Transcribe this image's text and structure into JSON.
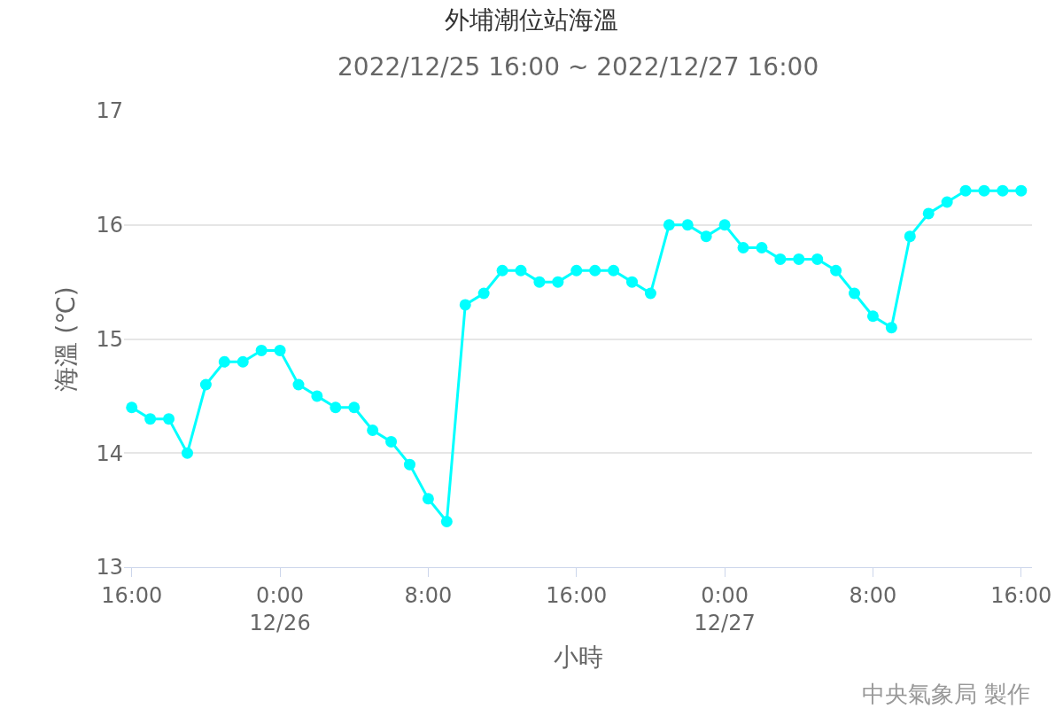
{
  "chart_data": {
    "type": "line",
    "title": "外埔潮位站海溫",
    "subtitle": "2022/12/25 16:00 ~ 2022/12/27 16:00",
    "xlabel": "小時",
    "ylabel": "海溫 (℃)",
    "x": [
      "2022-12-25T16:00",
      "2022-12-25T17:00",
      "2022-12-25T18:00",
      "2022-12-25T19:00",
      "2022-12-25T20:00",
      "2022-12-25T21:00",
      "2022-12-25T22:00",
      "2022-12-25T23:00",
      "2022-12-26T00:00",
      "2022-12-26T01:00",
      "2022-12-26T02:00",
      "2022-12-26T03:00",
      "2022-12-26T04:00",
      "2022-12-26T05:00",
      "2022-12-26T06:00",
      "2022-12-26T07:00",
      "2022-12-26T08:00",
      "2022-12-26T09:00",
      "2022-12-26T10:00",
      "2022-12-26T11:00",
      "2022-12-26T12:00",
      "2022-12-26T13:00",
      "2022-12-26T14:00",
      "2022-12-26T15:00",
      "2022-12-26T16:00",
      "2022-12-26T17:00",
      "2022-12-26T18:00",
      "2022-12-26T19:00",
      "2022-12-26T20:00",
      "2022-12-26T21:00",
      "2022-12-26T22:00",
      "2022-12-26T23:00",
      "2022-12-27T00:00",
      "2022-12-27T01:00",
      "2022-12-27T02:00",
      "2022-12-27T03:00",
      "2022-12-27T04:00",
      "2022-12-27T05:00",
      "2022-12-27T06:00",
      "2022-12-27T07:00",
      "2022-12-27T08:00",
      "2022-12-27T09:00",
      "2022-12-27T10:00",
      "2022-12-27T11:00",
      "2022-12-27T12:00",
      "2022-12-27T13:00",
      "2022-12-27T14:00",
      "2022-12-27T15:00",
      "2022-12-27T16:00"
    ],
    "series": [
      {
        "color": "#00ffff",
        "values": [
          14.4,
          14.3,
          14.3,
          14.0,
          14.6,
          14.8,
          14.8,
          14.9,
          14.9,
          14.6,
          14.5,
          14.4,
          14.4,
          14.2,
          14.1,
          13.9,
          13.6,
          13.4,
          15.3,
          15.4,
          15.6,
          15.6,
          15.5,
          15.5,
          15.6,
          15.6,
          15.6,
          15.5,
          15.4,
          16.0,
          16.0,
          15.9,
          16.0,
          15.8,
          15.8,
          15.7,
          15.7,
          15.7,
          15.6,
          15.4,
          15.2,
          15.1,
          15.9,
          16.1,
          16.2,
          16.3,
          16.3,
          16.3,
          16.3
        ]
      }
    ],
    "xlim": [
      "2022-12-25T15:35",
      "2022-12-27T16:35"
    ],
    "xticks": [
      {
        "value": "2022-12-25T16:00",
        "label": "16:00"
      },
      {
        "value": "2022-12-26T00:00",
        "label": "0:00\n12/26"
      },
      {
        "value": "2022-12-26T08:00",
        "label": "8:00"
      },
      {
        "value": "2022-12-26T16:00",
        "label": "16:00"
      },
      {
        "value": "2022-12-27T00:00",
        "label": "0:00\n12/27"
      },
      {
        "value": "2022-12-27T08:00",
        "label": "8:00"
      },
      {
        "value": "2022-12-27T16:00",
        "label": "16:00"
      }
    ],
    "ylim": [
      13,
      17
    ],
    "yticks": [
      13,
      14,
      15,
      16,
      17
    ],
    "grid": "y",
    "marker": "circle",
    "line_style": "solid",
    "annotations": [
      "中央氣象局 製作"
    ]
  }
}
